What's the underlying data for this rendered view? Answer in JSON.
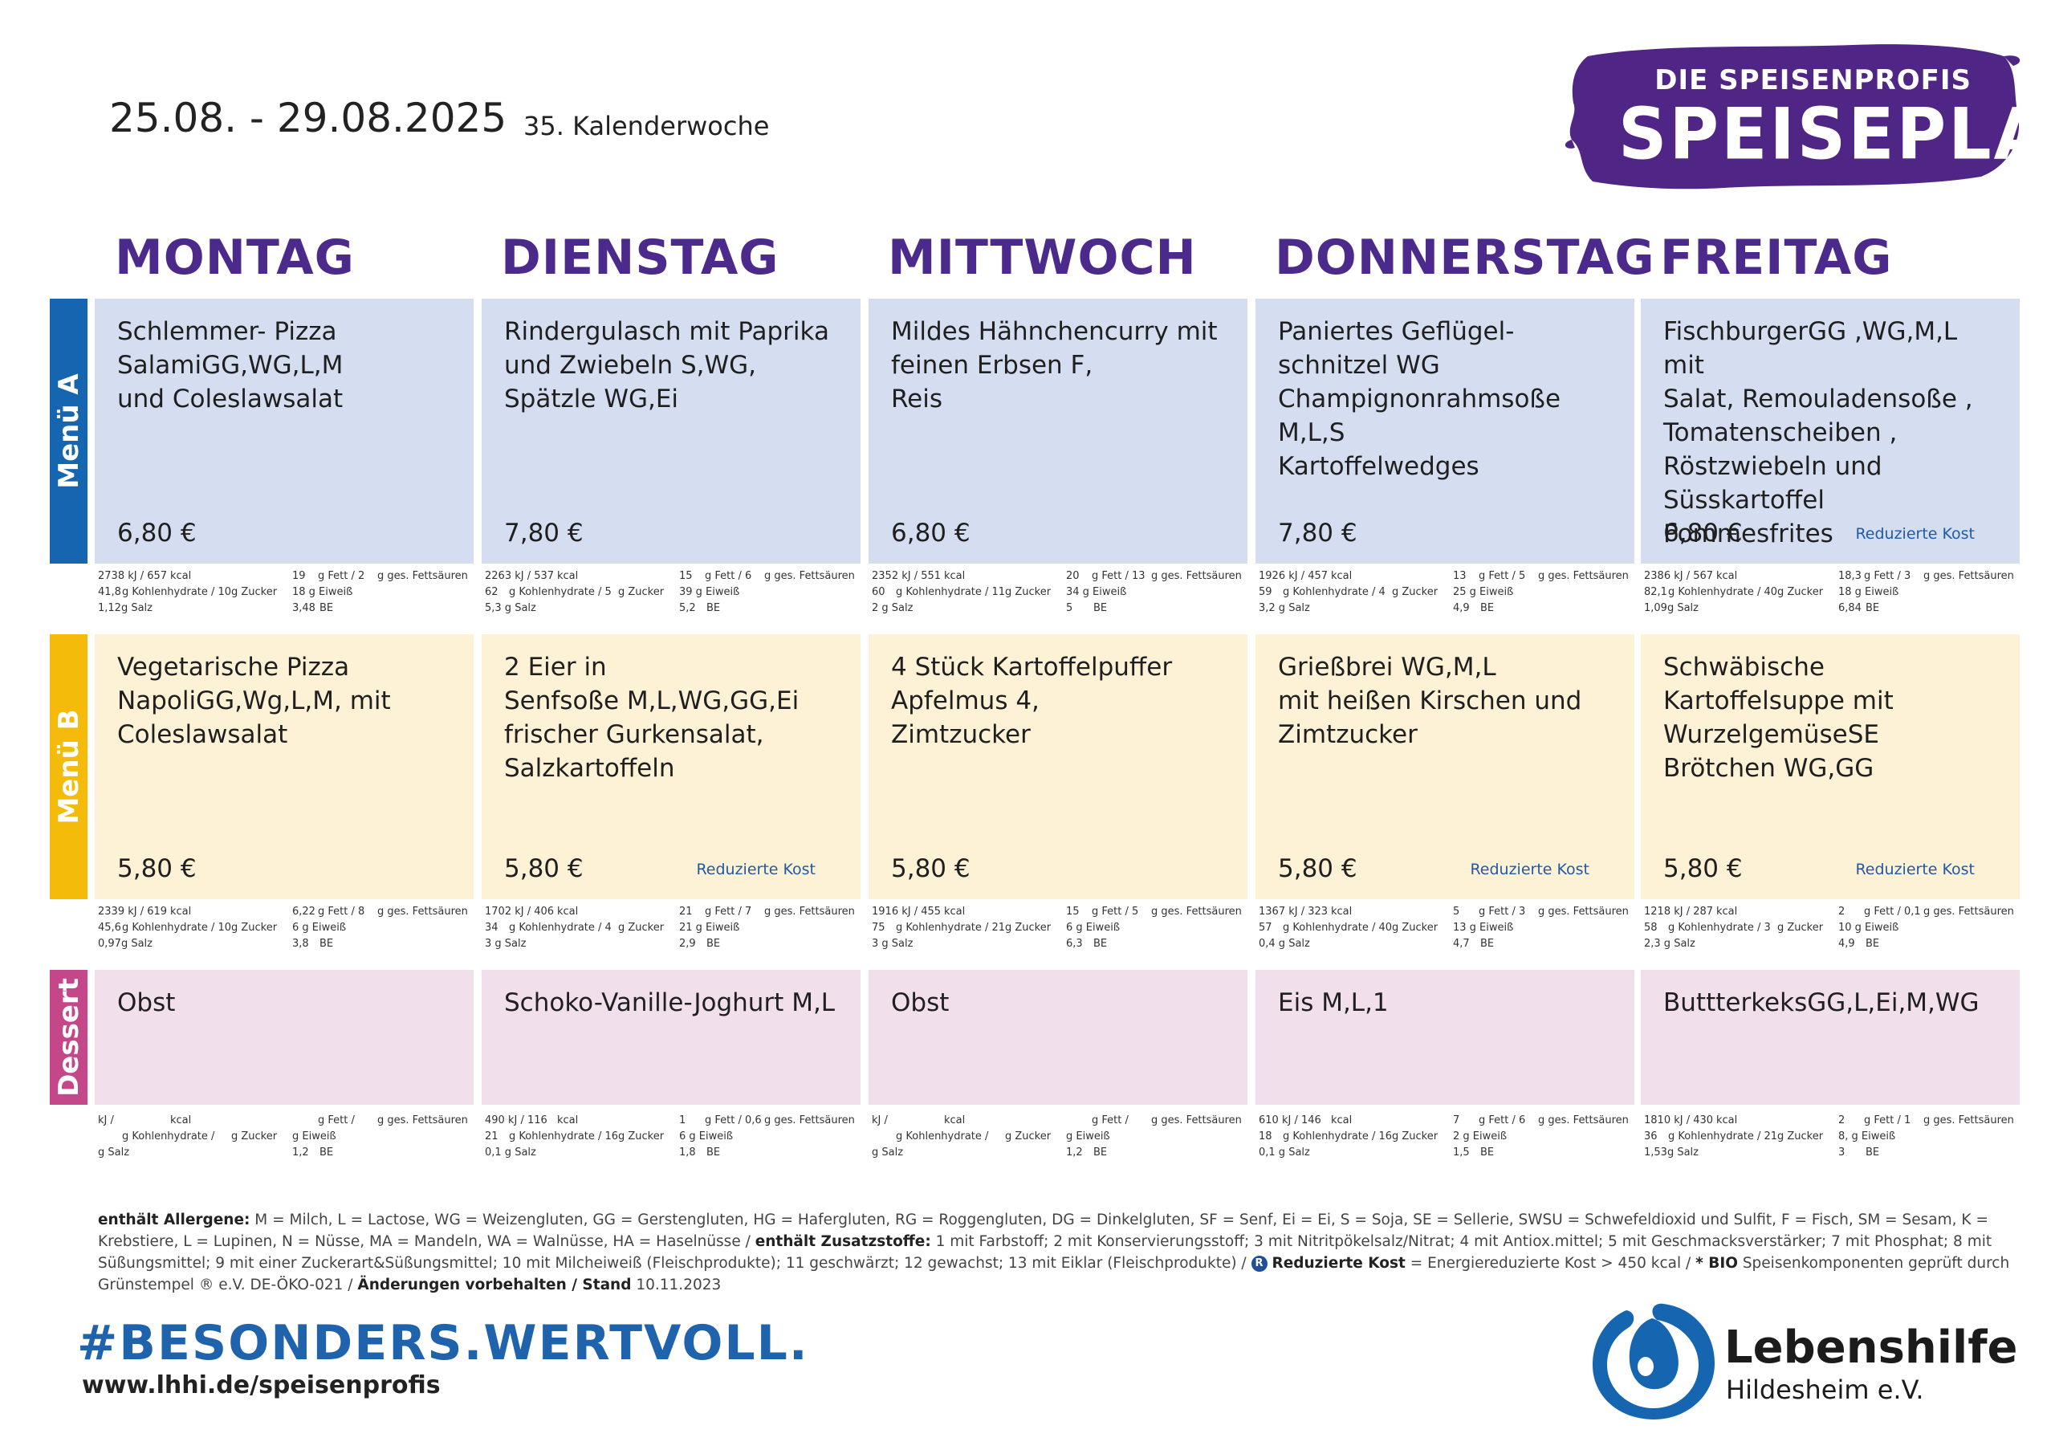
{
  "header": {
    "date_range": "25.08.  - 29.08.2025",
    "calendar_week": "35. Kalenderwoche",
    "brand_sub": "DIE SPEISENPROFIS",
    "brand_title": "SPEISEPLAN",
    "brand_color": "#4f2586"
  },
  "days": [
    "MONTAG",
    "DIENSTAG",
    "MITTWOCH",
    "DONNERSTAG",
    "FREITAG"
  ],
  "rows": {
    "menu_a": {
      "label": "Menü A",
      "color": "#1565b0"
    },
    "menu_b": {
      "label": "Menü B",
      "color": "#f5bb0b"
    },
    "dessert": {
      "label": "Dessert",
      "color": "#c4478a"
    }
  },
  "menu_a": [
    {
      "dish": "Schlemmer- Pizza\nSalamiGG,WG,L,M\nund Coleslawsalat",
      "price": "6,80 €",
      "reduced": "",
      "n": {
        "kj": "2738 kJ / 657",
        "kcal": "kcal",
        "fett": "19",
        "fett_lbl": "g Fett / 2",
        "ges": "g ges. Fettsäuren",
        "kh": "41,8",
        "kh_lbl": "g Kohlenhydrate / 10",
        "zucker": "g Zucker",
        "eiw": "18 g Eiweiß",
        "salz": "1,12g Salz",
        "be": "3,48",
        "be_lbl": "BE"
      }
    },
    {
      "dish": "Rindergulasch mit Paprika\nund Zwiebeln S,WG,\nSpätzle WG,Ei",
      "price": "7,80 €",
      "reduced": "",
      "n": {
        "kj": "2263 kJ / 537",
        "kcal": "kcal",
        "fett": "15",
        "fett_lbl": "g Fett / 6",
        "ges": "g ges. Fettsäuren",
        "kh": "62",
        "kh_lbl": "g Kohlenhydrate / 5",
        "zucker": "g Zucker",
        "eiw": "39 g Eiweiß",
        "salz": "5,3 g Salz",
        "be": "5,2",
        "be_lbl": "BE"
      }
    },
    {
      "dish": "Mildes Hähnchencurry mit\nfeinen Erbsen F,\nReis",
      "price": "6,80 €",
      "reduced": "",
      "n": {
        "kj": "2352 kJ / 551",
        "kcal": "kcal",
        "fett": "20",
        "fett_lbl": "g Fett / 13",
        "ges": "g ges. Fettsäuren",
        "kh": "60",
        "kh_lbl": "g Kohlenhydrate / 11",
        "zucker": "g Zucker",
        "eiw": "34 g Eiweiß",
        "salz": "2  g Salz",
        "be": "5",
        "be_lbl": "BE"
      }
    },
    {
      "dish": "Paniertes Geflügel-\nschnitzel WG\nChampignonrahmsoße\nM,L,S\nKartoffelwedges",
      "price": "7,80 €",
      "reduced": "",
      "n": {
        "kj": "1926 kJ / 457",
        "kcal": "kcal",
        "fett": "13",
        "fett_lbl": "g Fett / 5",
        "ges": "g ges. Fettsäuren",
        "kh": "59",
        "kh_lbl": "g Kohlenhydrate / 4",
        "zucker": "g Zucker",
        "eiw": "25 g Eiweiß",
        "salz": "3,2 g Salz",
        "be": "4,9",
        "be_lbl": "BE"
      }
    },
    {
      "dish": "FischburgerGG ,WG,M,L mit\nSalat, Remouladensoße ,\nTomatenscheiben ,\nRöstzwiebeln und\nSüsskartoffel Pommesfrites",
      "price": "6,80 €",
      "reduced": "Reduzierte Kost",
      "n": {
        "kj": "2386 kJ / 567",
        "kcal": "kcal",
        "fett": "18,3",
        "fett_lbl": "g Fett / 3",
        "ges": "g ges. Fettsäuren",
        "kh": "82,1",
        "kh_lbl": "g Kohlenhydrate / 40",
        "zucker": "g Zucker",
        "eiw": "18 g Eiweiß",
        "salz": "1,09g Salz",
        "be": "6,84",
        "be_lbl": "BE"
      }
    }
  ],
  "menu_b": [
    {
      "dish": "Vegetarische Pizza\nNapoliGG,Wg,L,M, mit\nColeslawsalat",
      "price": "5,80 €",
      "reduced": "",
      "n": {
        "kj": "2339 kJ / 619",
        "kcal": "kcal",
        "fett": "6,22",
        "fett_lbl": "g Fett / 8",
        "ges": "g ges. Fettsäuren",
        "kh": "45,6",
        "kh_lbl": "g Kohlenhydrate / 10",
        "zucker": "g Zucker",
        "eiw": "6  g Eiweiß",
        "salz": "0,97g Salz",
        "be": "3,8",
        "be_lbl": "BE"
      }
    },
    {
      "dish": "2 Eier in\nSenfsoße M,L,WG,GG,Ei\nfrischer Gurkensalat,\nSalzkartoffeln",
      "price": "5,80 €",
      "reduced": "Reduzierte Kost",
      "n": {
        "kj": "1702 kJ / 406",
        "kcal": "kcal",
        "fett": "21",
        "fett_lbl": "g Fett / 7",
        "ges": "g ges. Fettsäuren",
        "kh": "34",
        "kh_lbl": "g Kohlenhydrate / 4",
        "zucker": "g Zucker",
        "eiw": "21 g Eiweiß",
        "salz": "3  g Salz",
        "be": "2,9",
        "be_lbl": "BE"
      }
    },
    {
      "dish": "4 Stück Kartoffelpuffer\nApfelmus 4,\nZimtzucker",
      "price": "5,80 €",
      "reduced": "",
      "n": {
        "kj": "1916 kJ / 455",
        "kcal": "kcal",
        "fett": "15",
        "fett_lbl": "g Fett / 5",
        "ges": "g ges. Fettsäuren",
        "kh": "75",
        "kh_lbl": "g Kohlenhydrate / 21",
        "zucker": "g Zucker",
        "eiw": "6  g Eiweiß",
        "salz": "3  g Salz",
        "be": "6,3",
        "be_lbl": "BE"
      }
    },
    {
      "dish": "Grießbrei WG,M,L\nmit heißen Kirschen und\nZimtzucker",
      "price": "5,80 €",
      "reduced": "Reduzierte Kost",
      "n": {
        "kj": "1367 kJ / 323",
        "kcal": "kcal",
        "fett": "5",
        "fett_lbl": "g Fett / 3",
        "ges": "g ges. Fettsäuren",
        "kh": "57",
        "kh_lbl": "g Kohlenhydrate / 40",
        "zucker": "g Zucker",
        "eiw": "13 g Eiweiß",
        "salz": "0,4 g Salz",
        "be": "4,7",
        "be_lbl": "BE"
      }
    },
    {
      "dish": "Schwäbische\nKartoffelsuppe mit\nWurzelgemüseSE\nBrötchen WG,GG",
      "price": "5,80 €",
      "reduced": "Reduzierte Kost",
      "n": {
        "kj": "1218 kJ / 287",
        "kcal": "kcal",
        "fett": "2",
        "fett_lbl": "g Fett / 0,1",
        "ges": "g ges. Fettsäuren",
        "kh": "58",
        "kh_lbl": "g Kohlenhydrate / 3",
        "zucker": "g Zucker",
        "eiw": "10 g Eiweiß",
        "salz": "2,3 g Salz",
        "be": "4,9",
        "be_lbl": "BE"
      }
    }
  ],
  "dessert": [
    {
      "dish": "Obst",
      "n": {
        "kj": "kJ /",
        "kcal": "kcal",
        "fett": "",
        "fett_lbl": "g Fett /",
        "ges": "g ges. Fettsäuren",
        "kh": "",
        "kh_lbl": "g Kohlenhydrate /",
        "zucker": "g Zucker",
        "eiw": "g Eiweiß",
        "salz": "g Salz",
        "be": "1,2",
        "be_lbl": "BE"
      }
    },
    {
      "dish": "Schoko-Vanille-Joghurt M,L",
      "n": {
        "kj": "490  kJ / 116",
        "kcal": "kcal",
        "fett": "1",
        "fett_lbl": "g Fett / 0,6",
        "ges": "g ges. Fettsäuren",
        "kh": "21",
        "kh_lbl": "g Kohlenhydrate / 16",
        "zucker": "g Zucker",
        "eiw": "6  g Eiweiß",
        "salz": "0,1 g Salz",
        "be": "1,8",
        "be_lbl": "BE"
      }
    },
    {
      "dish": "Obst",
      "n": {
        "kj": "kJ /",
        "kcal": "kcal",
        "fett": "",
        "fett_lbl": "g Fett /",
        "ges": "g ges. Fettsäuren",
        "kh": "",
        "kh_lbl": "g Kohlenhydrate /",
        "zucker": "g Zucker",
        "eiw": "g Eiweiß",
        "salz": "g Salz",
        "be": "1,2",
        "be_lbl": "BE"
      }
    },
    {
      "dish": "Eis M,L,1",
      "n": {
        "kj": "610  kJ / 146",
        "kcal": "kcal",
        "fett": "7",
        "fett_lbl": "g Fett / 6",
        "ges": "g ges. Fettsäuren",
        "kh": "18",
        "kh_lbl": "g Kohlenhydrate / 16",
        "zucker": "g Zucker",
        "eiw": "2  g Eiweiß",
        "salz": "0,1 g Salz",
        "be": "1,5",
        "be_lbl": "BE"
      }
    },
    {
      "dish": "ButtterkeksGG,L,Ei,M,WG",
      "n": {
        "kj": "1810 kJ / 430",
        "kcal": "kcal",
        "fett": "2",
        "fett_lbl": "g Fett / 1",
        "ges": "g ges. Fettsäuren",
        "kh": "36",
        "kh_lbl": "g Kohlenhydrate / 21",
        "zucker": "g Zucker",
        "eiw": "8,  g Eiweiß",
        "salz": "1,53g Salz",
        "be": "3",
        "be_lbl": "BE"
      }
    }
  ],
  "footer": {
    "allergen_label": "enthält Allergene:",
    "allergen_text": " M = Milch, L = Lactose, WG = Weizengluten, GG = Gerstengluten, HG = Hafergluten, RG = Roggengluten, DG = Dinkelgluten, SF = Senf, Ei = Ei, S = Soja, SE = Sellerie, SWSU = Schwefeldioxid und Sulfit, F = Fisch, SM = Sesam, K = Krebstiere, L = Lupinen, N = Nüsse, MA = Mandeln, WA = Walnüsse, HA =  Haselnüsse / ",
    "additive_label": "enthält Zusatzstoffe:",
    "additive_text": " 1 mit Farbstoff; 2 mit Konservierungsstoff; 3 mit Nitritpökelsalz/Nitrat; 4 mit Antiox.mittel; 5 mit Geschmacksverstärker; 7 mit Phosphat; 8 mit Süßungsmittel; 9 mit einer Zuckerart&Süßungsmittel; 10 mit Milcheiweiß (Fleischprodukte); 11 geschwärzt; 12 gewachst; 13 mit Eiklar (Fleischprodukte) / ",
    "r_badge": "R",
    "reduced_label": "Reduzierte Kost",
    "reduced_text": " = Energiereduzierte Kost > 450 kcal / ",
    "bio_label": "* BIO",
    "bio_text": " Speisenkomponenten geprüft durch Grünstempel ® e.V. DE-ÖKO-021 / ",
    "changes_label": "Änderungen vorbehalten / Stand",
    "changes_text": "  10.11.2023",
    "hashtag": "#BESONDERS.WERTVOLL.",
    "url": "www.lhhi.de/speisenprofis",
    "org_name": "Lebenshilfe",
    "org_place": "Hildesheim e.V.",
    "logo_color": "#1565b0"
  }
}
